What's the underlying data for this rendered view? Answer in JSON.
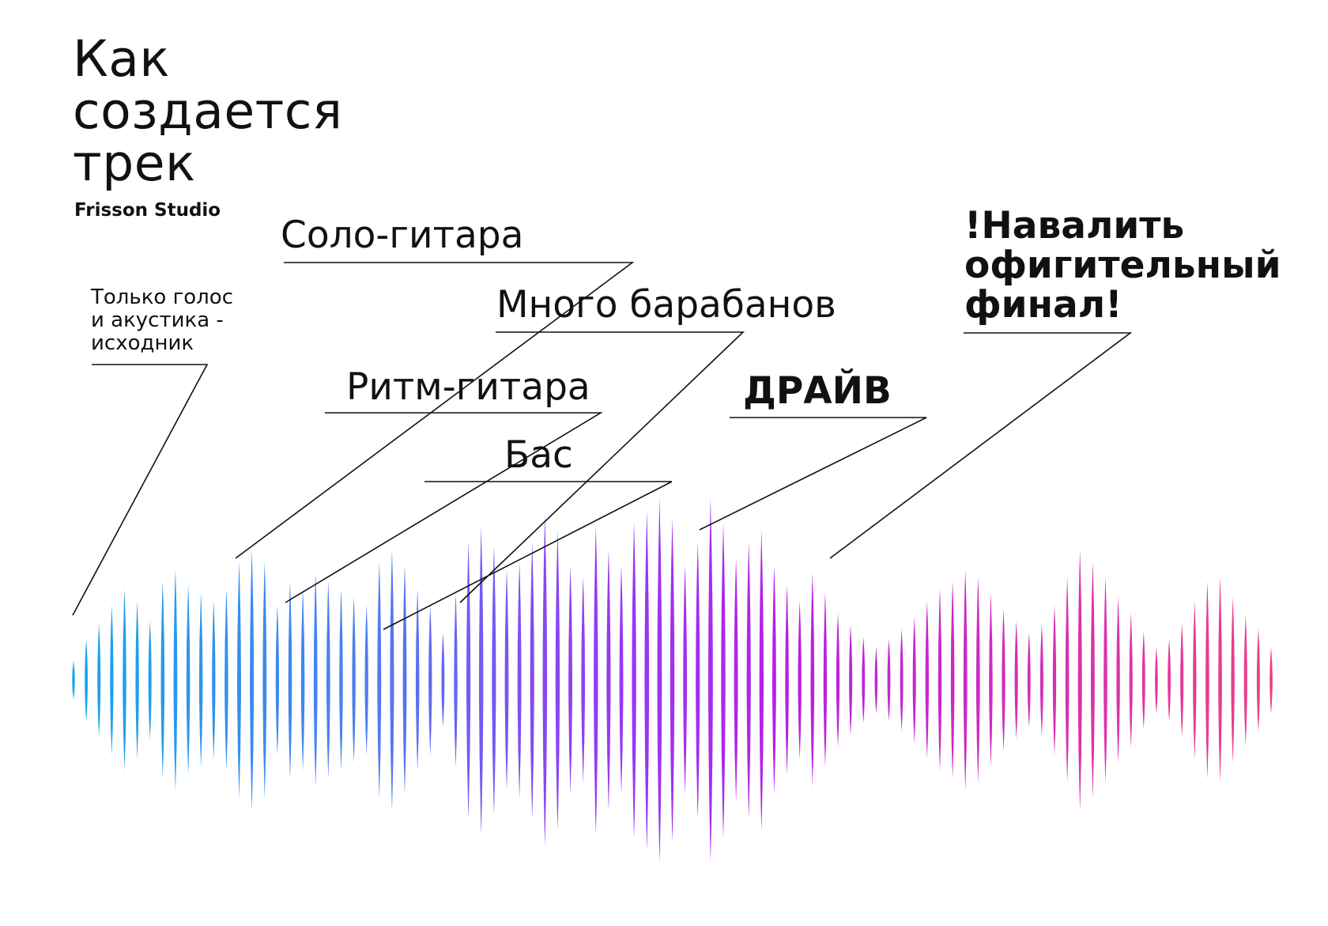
{
  "title_lines": [
    "Как",
    "создается",
    "трек"
  ],
  "subtitle": "Frisson Studio",
  "labels": {
    "voice_lines": [
      "Только голос",
      "и акустика -",
      "исходник"
    ],
    "solo": "Соло-гитара",
    "drums": "Много барабанов",
    "rhythm": "Ритм-гитара",
    "bass": "Бас",
    "drive": "ДРАЙВ",
    "final_lines": [
      "!Навалить",
      "офигительный",
      "финал!"
    ]
  },
  "colors": {
    "gradient_start": "#13a7ec",
    "gradient_mid1": "#4f7cf0",
    "gradient_mid2": "#8f40f2",
    "gradient_mid3": "#b81ee8",
    "gradient_end": "#ee3f86",
    "text": "#111111"
  }
}
